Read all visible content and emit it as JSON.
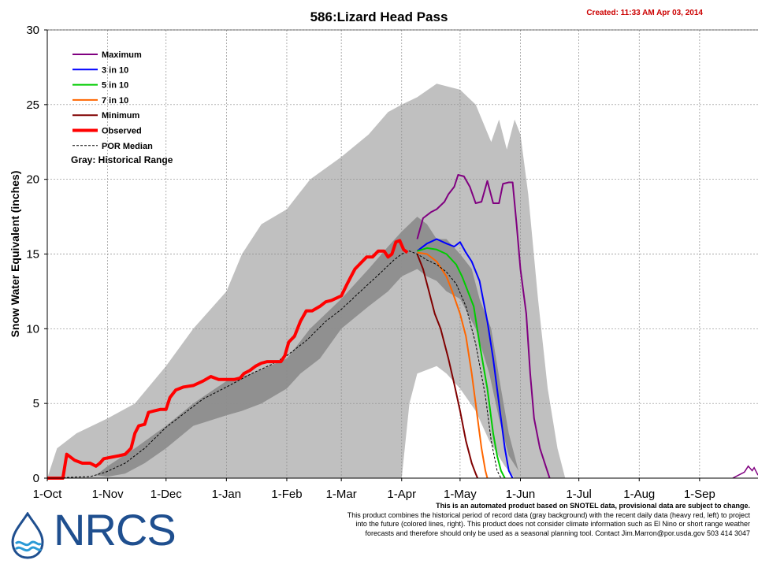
{
  "header": {
    "title": "586:Lizard Head Pass",
    "created": "Created: 11:33 AM Apr 03, 2014"
  },
  "disclaimer": {
    "line1": "This is an automated product based on SNOTEL data, provisional data are subject to change.",
    "line2": "This product combines the historical period of record data (gray background) with the recent daily data (heavy red, left) to project",
    "line3": "into the future (colored lines, right). This product does not consider climate information such as El Nino or short range weather",
    "line4": "forecasts and therefore should only be used as a seasonal planning tool. Contact Jim.Marron@por.usda.gov 503 414 3047"
  },
  "logo": {
    "text": "NRCS"
  },
  "chart_data": {
    "type": "line",
    "title": "586:Lizard Head Pass",
    "ylabel": "Snow Water Equivalent (inches)",
    "xlabel": "",
    "ylim": [
      0,
      30
    ],
    "yticks": [
      0,
      5,
      10,
      15,
      20,
      25,
      30
    ],
    "xlim_days": [
      0,
      365
    ],
    "xticks": [
      {
        "label": "1-Oct",
        "day": 0
      },
      {
        "label": "1-Nov",
        "day": 31
      },
      {
        "label": "1-Dec",
        "day": 61
      },
      {
        "label": "1-Jan",
        "day": 92
      },
      {
        "label": "1-Feb",
        "day": 123
      },
      {
        "label": "1-Mar",
        "day": 151
      },
      {
        "label": "1-Apr",
        "day": 182
      },
      {
        "label": "1-May",
        "day": 212
      },
      {
        "label": "1-Jun",
        "day": 243
      },
      {
        "label": "1-Jul",
        "day": 273
      },
      {
        "label": "1-Aug",
        "day": 304
      },
      {
        "label": "1-Sep",
        "day": 335
      }
    ],
    "legend_note": "Gray: Historical Range",
    "legend_placement": "top-left",
    "colors": {
      "maximum": "#800080",
      "p30": "#0000ff",
      "p50": "#00cc00",
      "p70": "#ff6600",
      "minimum": "#800000",
      "observed": "#ff0000",
      "median": "#000000",
      "range_outer": "#c0c0c0",
      "range_inner": "#909090"
    },
    "range_outer": {
      "upper": [
        [
          0,
          0
        ],
        [
          5,
          2
        ],
        [
          15,
          3
        ],
        [
          31,
          4
        ],
        [
          45,
          5
        ],
        [
          61,
          7.5
        ],
        [
          75,
          10
        ],
        [
          92,
          12.5
        ],
        [
          100,
          15
        ],
        [
          110,
          17
        ],
        [
          123,
          18
        ],
        [
          135,
          20
        ],
        [
          151,
          21.5
        ],
        [
          165,
          23
        ],
        [
          175,
          24.5
        ],
        [
          182,
          25
        ],
        [
          190,
          25.5
        ],
        [
          200,
          26.4
        ],
        [
          212,
          26
        ],
        [
          220,
          25
        ],
        [
          228,
          22.5
        ],
        [
          232,
          24
        ],
        [
          236,
          22
        ],
        [
          240,
          24
        ],
        [
          243,
          23
        ],
        [
          247,
          19
        ],
        [
          252,
          12
        ],
        [
          257,
          6
        ],
        [
          262,
          2
        ],
        [
          266,
          0
        ],
        [
          365,
          0
        ]
      ],
      "lower": [
        [
          0,
          0
        ],
        [
          182,
          0
        ],
        [
          186,
          5
        ],
        [
          190,
          7
        ],
        [
          200,
          7.5
        ],
        [
          205,
          7
        ],
        [
          212,
          6
        ],
        [
          220,
          4.5
        ],
        [
          227,
          2.5
        ],
        [
          235,
          0.8
        ],
        [
          240,
          0
        ],
        [
          365,
          0
        ]
      ]
    },
    "range_inner": {
      "upper": [
        [
          25,
          0.2
        ],
        [
          31,
          0.8
        ],
        [
          45,
          2
        ],
        [
          61,
          3.5
        ],
        [
          75,
          5
        ],
        [
          92,
          6.5
        ],
        [
          105,
          7
        ],
        [
          123,
          8
        ],
        [
          135,
          10
        ],
        [
          151,
          12
        ],
        [
          165,
          14
        ],
        [
          175,
          15.5
        ],
        [
          182,
          16.5
        ],
        [
          190,
          17.5
        ],
        [
          195,
          17
        ],
        [
          200,
          16
        ],
        [
          205,
          16
        ],
        [
          212,
          15
        ],
        [
          218,
          14
        ],
        [
          222,
          12
        ],
        [
          228,
          10
        ],
        [
          233,
          6
        ],
        [
          237,
          3
        ],
        [
          242,
          0.5
        ]
      ],
      "lower": [
        [
          242,
          0.5
        ],
        [
          237,
          1.5
        ],
        [
          232,
          4
        ],
        [
          227,
          7
        ],
        [
          220,
          10
        ],
        [
          212,
          12
        ],
        [
          205,
          12.5
        ],
        [
          200,
          13.2
        ],
        [
          195,
          13.5
        ],
        [
          190,
          14
        ],
        [
          182,
          13.5
        ],
        [
          175,
          12.5
        ],
        [
          165,
          11.5
        ],
        [
          151,
          10
        ],
        [
          140,
          8
        ],
        [
          130,
          7
        ],
        [
          123,
          6
        ],
        [
          110,
          5
        ],
        [
          100,
          4.5
        ],
        [
          92,
          4.2
        ],
        [
          75,
          3.5
        ],
        [
          61,
          2
        ],
        [
          50,
          1
        ],
        [
          40,
          0.3
        ],
        [
          31,
          0.1
        ],
        [
          25,
          0.2
        ]
      ]
    },
    "series": [
      {
        "key": "maximum",
        "name": "Maximum",
        "points": [
          [
            190,
            16
          ],
          [
            193,
            17.4
          ],
          [
            197,
            17.8
          ],
          [
            200,
            18
          ],
          [
            204,
            18.5
          ],
          [
            206,
            19
          ],
          [
            209,
            19.5
          ],
          [
            211,
            20.3
          ],
          [
            214,
            20.2
          ],
          [
            217,
            19.5
          ],
          [
            220,
            18.4
          ],
          [
            223,
            18.5
          ],
          [
            226,
            19.9
          ],
          [
            229,
            18.4
          ],
          [
            232,
            18.4
          ],
          [
            234,
            19.7
          ],
          [
            237,
            19.8
          ],
          [
            239,
            19.8
          ],
          [
            241,
            17
          ],
          [
            243,
            14
          ],
          [
            246,
            11
          ],
          [
            248,
            7
          ],
          [
            250,
            4
          ],
          [
            253,
            2
          ],
          [
            256,
            0.8
          ],
          [
            258,
            0
          ]
        ]
      },
      {
        "key": "p30",
        "name": "3 in 10",
        "points": [
          [
            190,
            15.2
          ],
          [
            195,
            15.7
          ],
          [
            200,
            16
          ],
          [
            205,
            15.7
          ],
          [
            209,
            15.5
          ],
          [
            212,
            15.8
          ],
          [
            215,
            15.1
          ],
          [
            218,
            14.5
          ],
          [
            222,
            13.2
          ],
          [
            226,
            10.5
          ],
          [
            229,
            8
          ],
          [
            232,
            5
          ],
          [
            235,
            2
          ],
          [
            237,
            0.5
          ],
          [
            239,
            0
          ]
        ]
      },
      {
        "key": "p50",
        "name": "5 in 10",
        "points": [
          [
            190,
            15.2
          ],
          [
            195,
            15.4
          ],
          [
            200,
            15.3
          ],
          [
            205,
            15
          ],
          [
            210,
            14.3
          ],
          [
            213,
            13.5
          ],
          [
            216,
            12.5
          ],
          [
            219,
            11.5
          ],
          [
            222,
            9
          ],
          [
            226,
            6
          ],
          [
            229,
            3
          ],
          [
            231,
            1.5
          ],
          [
            233,
            0.5
          ],
          [
            235,
            0
          ]
        ]
      },
      {
        "key": "p70",
        "name": "7 in 10",
        "points": [
          [
            190,
            15.1
          ],
          [
            195,
            15
          ],
          [
            200,
            14.5
          ],
          [
            205,
            13.5
          ],
          [
            208,
            12.5
          ],
          [
            212,
            11
          ],
          [
            215,
            9.5
          ],
          [
            218,
            7
          ],
          [
            221,
            4
          ],
          [
            223,
            2
          ],
          [
            225,
            0.5
          ],
          [
            226,
            0
          ]
        ]
      },
      {
        "key": "minimum",
        "name": "Minimum",
        "points": [
          [
            190,
            15
          ],
          [
            193,
            14
          ],
          [
            196,
            12.5
          ],
          [
            199,
            11
          ],
          [
            202,
            10
          ],
          [
            206,
            8
          ],
          [
            209,
            6.3
          ],
          [
            212,
            4.5
          ],
          [
            215,
            2.5
          ],
          [
            218,
            1
          ],
          [
            220,
            0.3
          ],
          [
            221,
            0
          ]
        ]
      },
      {
        "key": "median",
        "name": "POR Median",
        "points": [
          [
            0,
            0
          ],
          [
            22,
            0.1
          ],
          [
            30,
            0.4
          ],
          [
            40,
            1
          ],
          [
            50,
            2
          ],
          [
            61,
            3.4
          ],
          [
            70,
            4.3
          ],
          [
            80,
            5.3
          ],
          [
            92,
            6.1
          ],
          [
            105,
            7
          ],
          [
            115,
            7.6
          ],
          [
            123,
            8.2
          ],
          [
            133,
            9.2
          ],
          [
            143,
            10.5
          ],
          [
            151,
            11.3
          ],
          [
            160,
            12.4
          ],
          [
            170,
            13.6
          ],
          [
            178,
            14.6
          ],
          [
            182,
            15
          ],
          [
            186,
            15.2
          ],
          [
            190,
            15
          ],
          [
            195,
            14.6
          ],
          [
            200,
            14.3
          ],
          [
            205,
            13.8
          ],
          [
            210,
            13
          ],
          [
            215,
            11.5
          ],
          [
            220,
            9
          ],
          [
            225,
            5.5
          ],
          [
            228,
            2.5
          ],
          [
            231,
            0.5
          ],
          [
            233,
            0
          ]
        ]
      },
      {
        "key": "observed",
        "name": "Observed",
        "points": [
          [
            0,
            0
          ],
          [
            8,
            0
          ],
          [
            10,
            1.6
          ],
          [
            14,
            1.2
          ],
          [
            18,
            1
          ],
          [
            22,
            1
          ],
          [
            25,
            0.8
          ],
          [
            27,
            1
          ],
          [
            29,
            1.3
          ],
          [
            33,
            1.4
          ],
          [
            37,
            1.5
          ],
          [
            40,
            1.6
          ],
          [
            43,
            2
          ],
          [
            45,
            3
          ],
          [
            47,
            3.5
          ],
          [
            50,
            3.6
          ],
          [
            52,
            4.4
          ],
          [
            55,
            4.5
          ],
          [
            58,
            4.6
          ],
          [
            61,
            4.6
          ],
          [
            63,
            5.4
          ],
          [
            66,
            5.9
          ],
          [
            70,
            6.1
          ],
          [
            75,
            6.2
          ],
          [
            80,
            6.5
          ],
          [
            84,
            6.8
          ],
          [
            88,
            6.6
          ],
          [
            92,
            6.6
          ],
          [
            96,
            6.6
          ],
          [
            99,
            6.7
          ],
          [
            101,
            7
          ],
          [
            104,
            7.2
          ],
          [
            107,
            7.5
          ],
          [
            110,
            7.7
          ],
          [
            113,
            7.8
          ],
          [
            117,
            7.8
          ],
          [
            120,
            7.8
          ],
          [
            122,
            8.2
          ],
          [
            124,
            9.1
          ],
          [
            127,
            9.5
          ],
          [
            130,
            10.5
          ],
          [
            133,
            11.2
          ],
          [
            136,
            11.2
          ],
          [
            140,
            11.5
          ],
          [
            143,
            11.8
          ],
          [
            146,
            11.9
          ],
          [
            151,
            12.2
          ],
          [
            154,
            13
          ],
          [
            156,
            13.5
          ],
          [
            158,
            14
          ],
          [
            161,
            14.4
          ],
          [
            164,
            14.8
          ],
          [
            167,
            14.8
          ],
          [
            170,
            15.2
          ],
          [
            173,
            15.2
          ],
          [
            175,
            14.8
          ],
          [
            177,
            15
          ],
          [
            179,
            15.8
          ],
          [
            181,
            15.9
          ],
          [
            183,
            15.3
          ],
          [
            185,
            15.1
          ]
        ]
      }
    ],
    "historical_tail": [
      [
        352,
        0
      ],
      [
        355,
        0.2
      ],
      [
        358,
        0.4
      ],
      [
        360,
        0.8
      ],
      [
        362,
        0.5
      ],
      [
        363,
        0.7
      ],
      [
        365,
        0.2
      ]
    ]
  }
}
